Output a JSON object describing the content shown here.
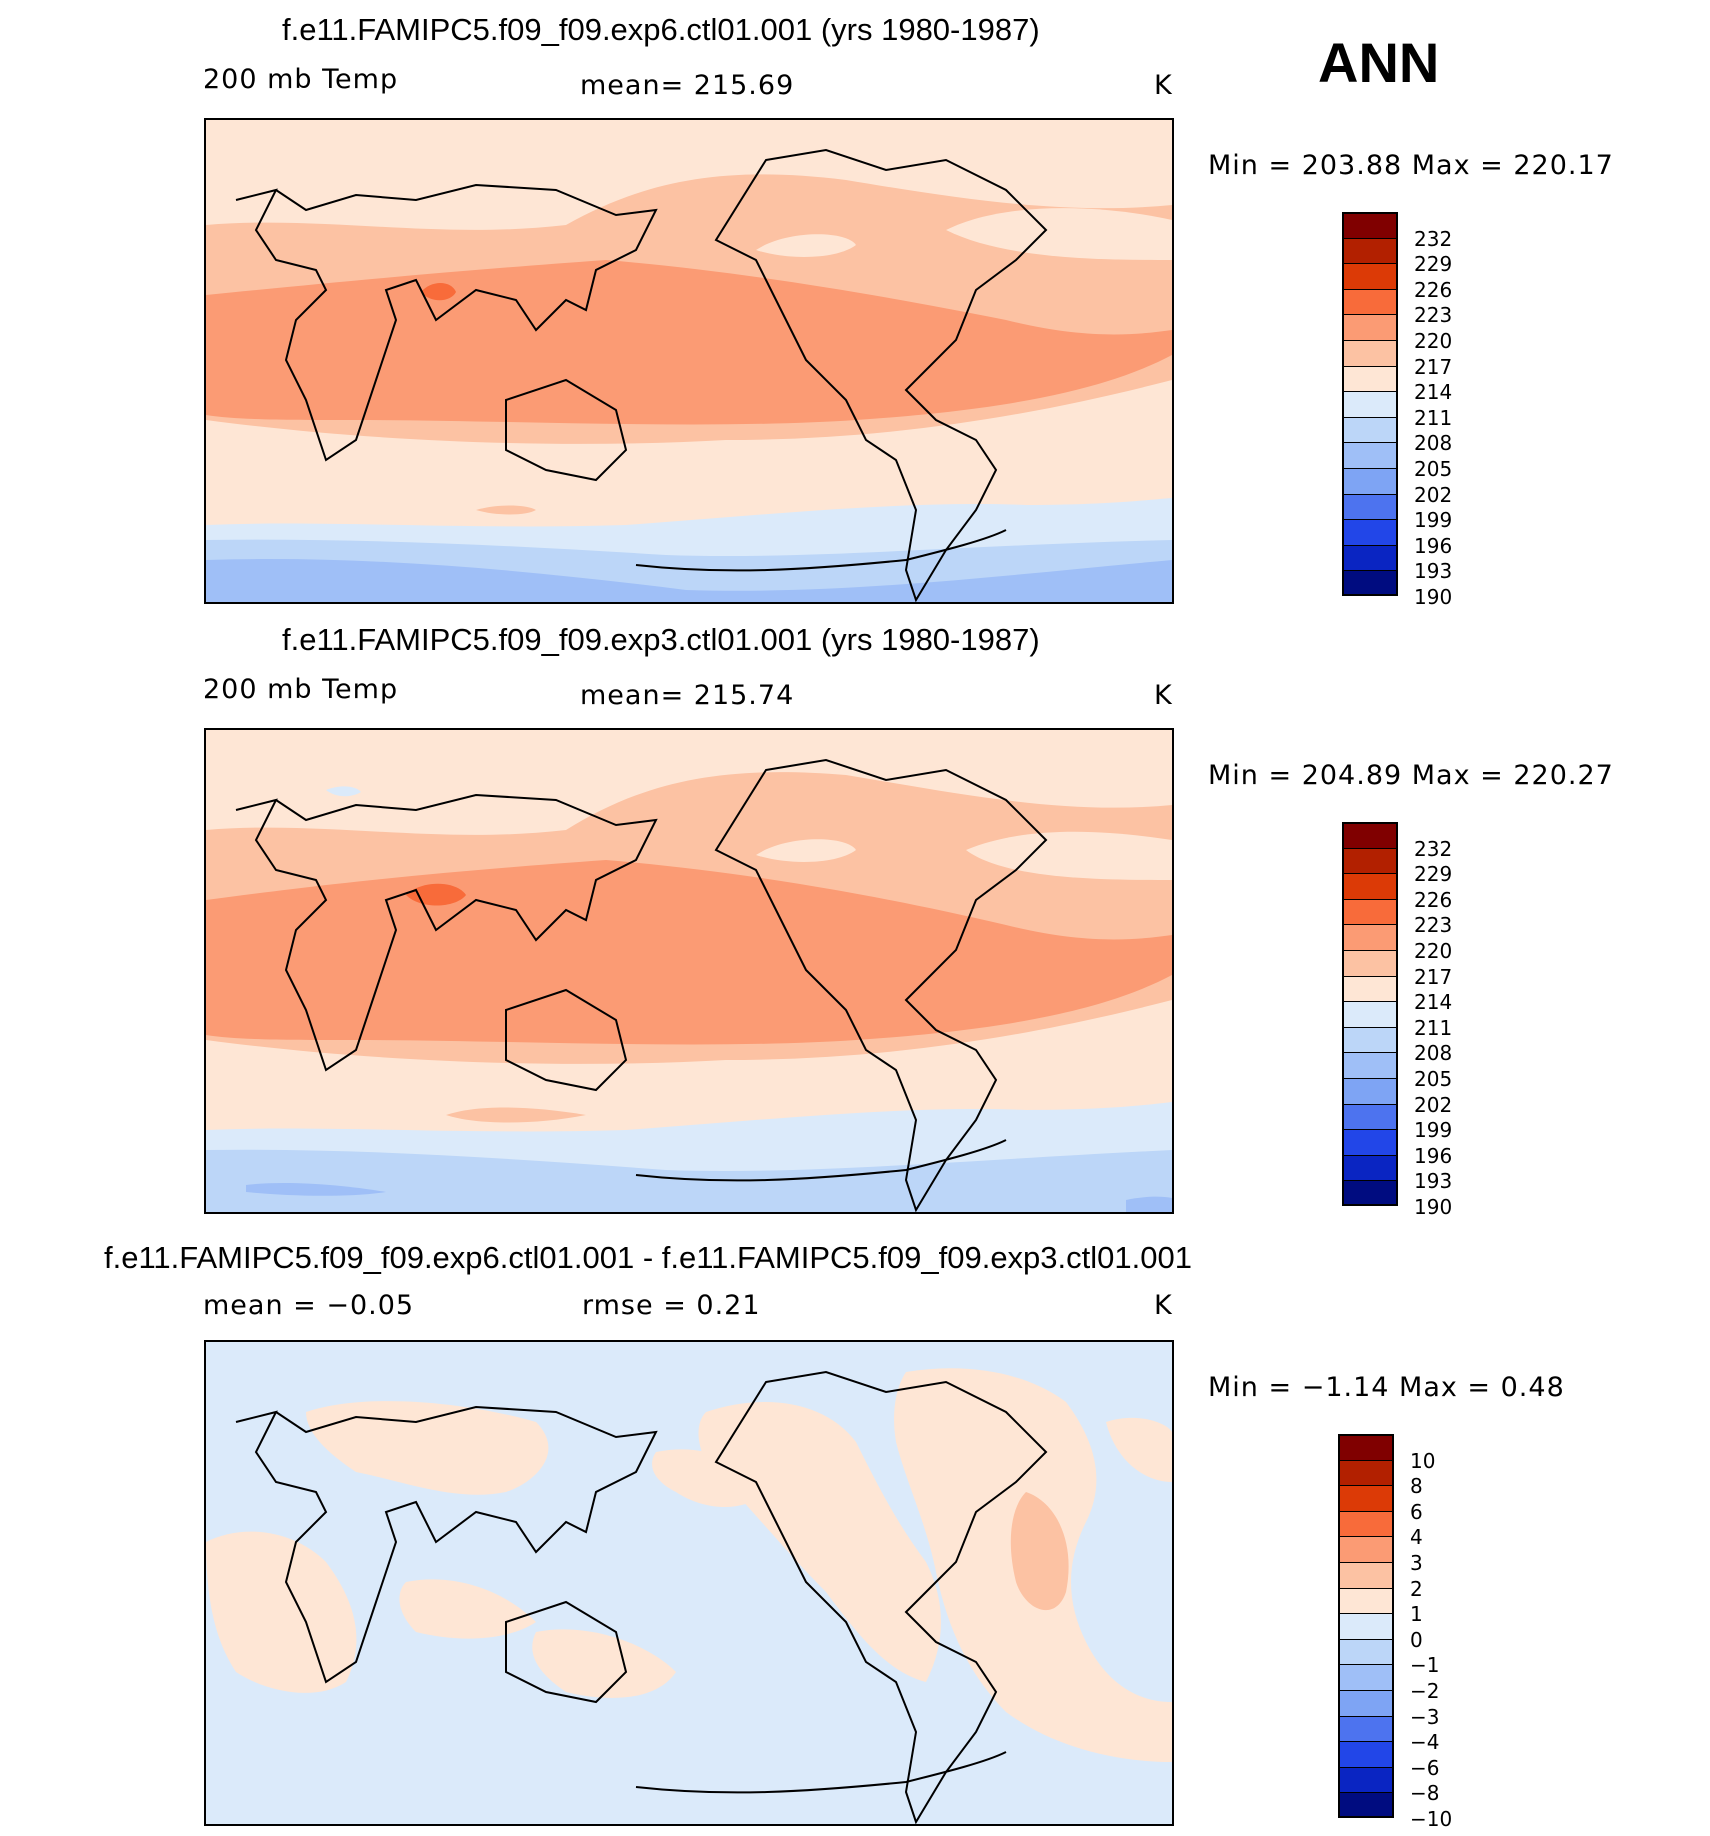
{
  "season": "ANN",
  "panels": [
    {
      "title": "f.e11.FAMIPC5.f09_f09.exp6.ctl01.001 (yrs 1980-1987)",
      "left_label": "200  mb  Temp",
      "center_label": "mean=  215.69",
      "units": "K",
      "minmax": "Min  =  203.88  Max  =  220.17",
      "colorbar_labels": [
        "232",
        "229",
        "226",
        "223",
        "220",
        "217",
        "214",
        "211",
        "208",
        "205",
        "202",
        "199",
        "196",
        "193",
        "190"
      ]
    },
    {
      "title": "f.e11.FAMIPC5.f09_f09.exp3.ctl01.001 (yrs 1980-1987)",
      "left_label": "200  mb  Temp",
      "center_label": "mean=  215.74",
      "units": "K",
      "minmax": "Min  =  204.89  Max  =  220.27",
      "colorbar_labels": [
        "232",
        "229",
        "226",
        "223",
        "220",
        "217",
        "214",
        "211",
        "208",
        "205",
        "202",
        "199",
        "196",
        "193",
        "190"
      ]
    },
    {
      "title": "f.e11.FAMIPC5.f09_f09.exp6.ctl01.001 - f.e11.FAMIPC5.f09_f09.exp3.ctl01.001",
      "left_label": "mean  =    −0.05",
      "center_label": "rmse  =     0.21",
      "units": "K",
      "minmax": "Min  =    −1.14  Max  =     0.48",
      "colorbar_labels": [
        "10",
        "8",
        "6",
        "4",
        "3",
        "2",
        "1",
        "0",
        "−1",
        "−2",
        "−3",
        "−4",
        "−6",
        "−8",
        "−10"
      ]
    }
  ],
  "colors": {
    "abs_scale": [
      "#800000",
      "#b22000",
      "#dc3a06",
      "#f86b3a",
      "#fb9b74",
      "#fcc2a3",
      "#fee6d5",
      "#dbeafa",
      "#bcd6f8",
      "#9fbff7",
      "#7ea4f4",
      "#4d73ef",
      "#2246e8",
      "#0a25c2",
      "#000c80"
    ],
    "diff_scale": [
      "#800000",
      "#b22000",
      "#dc3a06",
      "#f86b3a",
      "#fb9b74",
      "#fcc2a3",
      "#fee6d5",
      "#dbeafa",
      "#bcd6f8",
      "#9fbff7",
      "#7ea4f4",
      "#4d73ef",
      "#2246e8",
      "#0a25c2",
      "#000c80"
    ]
  }
}
